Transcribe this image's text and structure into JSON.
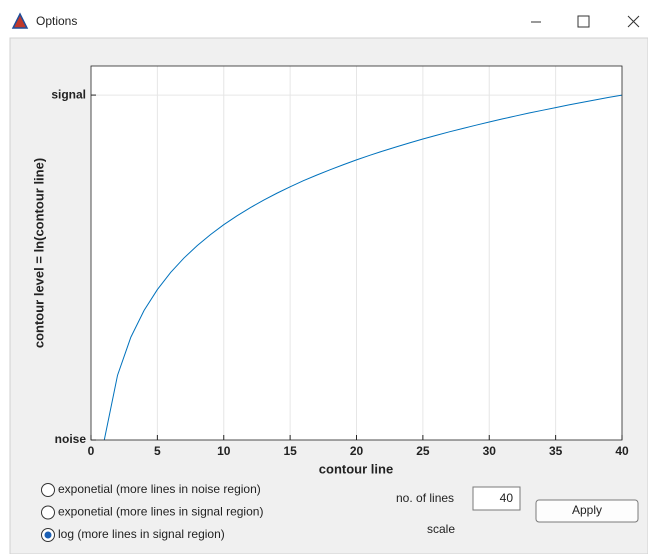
{
  "window": {
    "title": "Options"
  },
  "chart_data": {
    "type": "line",
    "x": [
      1,
      2,
      3,
      4,
      5,
      6,
      7,
      8,
      9,
      10,
      11,
      12,
      13,
      14,
      15,
      16,
      17,
      18,
      19,
      20,
      21,
      22,
      23,
      24,
      25,
      26,
      27,
      28,
      29,
      30,
      31,
      32,
      33,
      34,
      35,
      36,
      37,
      38,
      39,
      40
    ],
    "values": [
      0,
      0.693,
      1.099,
      1.386,
      1.609,
      1.792,
      1.946,
      2.079,
      2.197,
      2.303,
      2.398,
      2.485,
      2.565,
      2.639,
      2.708,
      2.773,
      2.833,
      2.89,
      2.944,
      2.996,
      3.045,
      3.091,
      3.135,
      3.178,
      3.219,
      3.258,
      3.296,
      3.332,
      3.367,
      3.401,
      3.434,
      3.466,
      3.497,
      3.526,
      3.555,
      3.584,
      3.611,
      3.638,
      3.664,
      3.689
    ],
    "color": "#0072bd",
    "xlabel": "contour line",
    "ylabel": "contour level = ln(contour line)",
    "xlim": [
      0,
      40
    ],
    "xticks": [
      0,
      5,
      10,
      15,
      20,
      25,
      30,
      35,
      40
    ],
    "ylim": [
      0,
      4.0
    ],
    "yticks": [
      {
        "value": 0,
        "label": "noise"
      },
      {
        "value": 3.689,
        "label": "signal"
      }
    ],
    "grid": true
  },
  "controls": {
    "radios": [
      {
        "label": "exponetial (more lines in noise region)",
        "selected": false
      },
      {
        "label": "exponetial (more lines in signal region)",
        "selected": false
      },
      {
        "label": "log (more lines in signal region)",
        "selected": true
      }
    ],
    "lines_label": "no. of lines",
    "lines_value": 40,
    "apply": "Apply",
    "scale_label": "scale"
  }
}
